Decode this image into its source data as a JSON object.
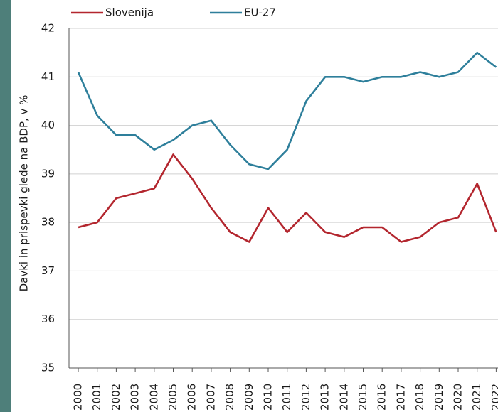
{
  "chart_data": {
    "type": "line",
    "y_label": "Davki in prispevki glede na BDP, v %",
    "categories": [
      "2000",
      "2001",
      "2002",
      "2003",
      "2004",
      "2005",
      "2006",
      "2007",
      "2008",
      "2009",
      "2010",
      "2011",
      "2012",
      "2013",
      "2014",
      "2015",
      "2016",
      "2017",
      "2018",
      "2019",
      "2020",
      "2021",
      "2022"
    ],
    "series": [
      {
        "name": "Slovenija",
        "color": "#b3262e",
        "values": [
          37.9,
          38.0,
          38.5,
          38.6,
          38.7,
          39.4,
          38.9,
          38.3,
          37.8,
          37.6,
          38.3,
          37.8,
          38.2,
          37.8,
          37.7,
          37.9,
          37.9,
          37.6,
          37.7,
          38.0,
          38.1,
          38.8,
          37.8
        ]
      },
      {
        "name": "EU-27",
        "color": "#2e7f9b",
        "values": [
          41.1,
          40.2,
          39.8,
          39.8,
          39.5,
          39.7,
          40.0,
          40.1,
          39.6,
          39.2,
          39.1,
          39.5,
          40.5,
          41.0,
          41.0,
          40.9,
          41.0,
          41.0,
          41.1,
          41.0,
          41.1,
          41.5,
          41.2
        ]
      }
    ],
    "ylim": [
      35,
      42
    ],
    "yticks": [
      35,
      36,
      37,
      38,
      39,
      40,
      41,
      42
    ],
    "grid": true,
    "legend": "top"
  }
}
